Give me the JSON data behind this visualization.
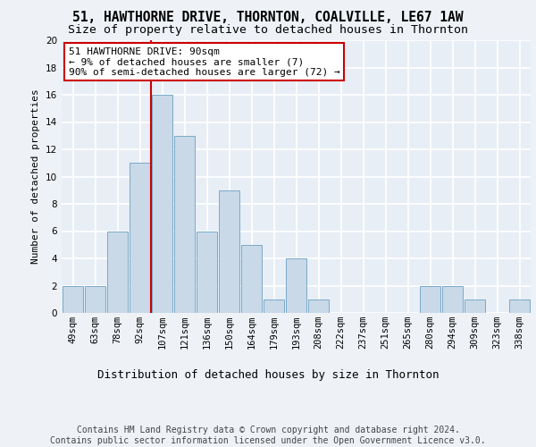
{
  "title1": "51, HAWTHORNE DRIVE, THORNTON, COALVILLE, LE67 1AW",
  "title2": "Size of property relative to detached houses in Thornton",
  "xlabel": "Distribution of detached houses by size in Thornton",
  "ylabel": "Number of detached properties",
  "footnote": "Contains HM Land Registry data © Crown copyright and database right 2024.\nContains public sector information licensed under the Open Government Licence v3.0.",
  "bin_labels": [
    "49sqm",
    "63sqm",
    "78sqm",
    "92sqm",
    "107sqm",
    "121sqm",
    "136sqm",
    "150sqm",
    "164sqm",
    "179sqm",
    "193sqm",
    "208sqm",
    "222sqm",
    "237sqm",
    "251sqm",
    "265sqm",
    "280sqm",
    "294sqm",
    "309sqm",
    "323sqm",
    "338sqm"
  ],
  "bar_values": [
    2,
    2,
    6,
    11,
    16,
    13,
    6,
    9,
    5,
    1,
    4,
    1,
    0,
    0,
    0,
    0,
    2,
    2,
    1,
    0,
    1
  ],
  "bar_color": "#c9d9e8",
  "bar_edge_color": "#7aaac8",
  "subject_line_color": "#cc0000",
  "annotation_text": "51 HAWTHORNE DRIVE: 90sqm\n← 9% of detached houses are smaller (7)\n90% of semi-detached houses are larger (72) →",
  "annotation_box_color": "white",
  "annotation_box_edge": "#cc0000",
  "ylim": [
    0,
    20
  ],
  "yticks": [
    0,
    2,
    4,
    6,
    8,
    10,
    12,
    14,
    16,
    18,
    20
  ],
  "background_color": "#eef2f7",
  "plot_bg_color": "#e8eef5",
  "grid_color": "white",
  "title1_fontsize": 10.5,
  "title2_fontsize": 9.5,
  "xlabel_fontsize": 9,
  "ylabel_fontsize": 8,
  "tick_fontsize": 7.5,
  "annotation_fontsize": 8,
  "footnote_fontsize": 7
}
